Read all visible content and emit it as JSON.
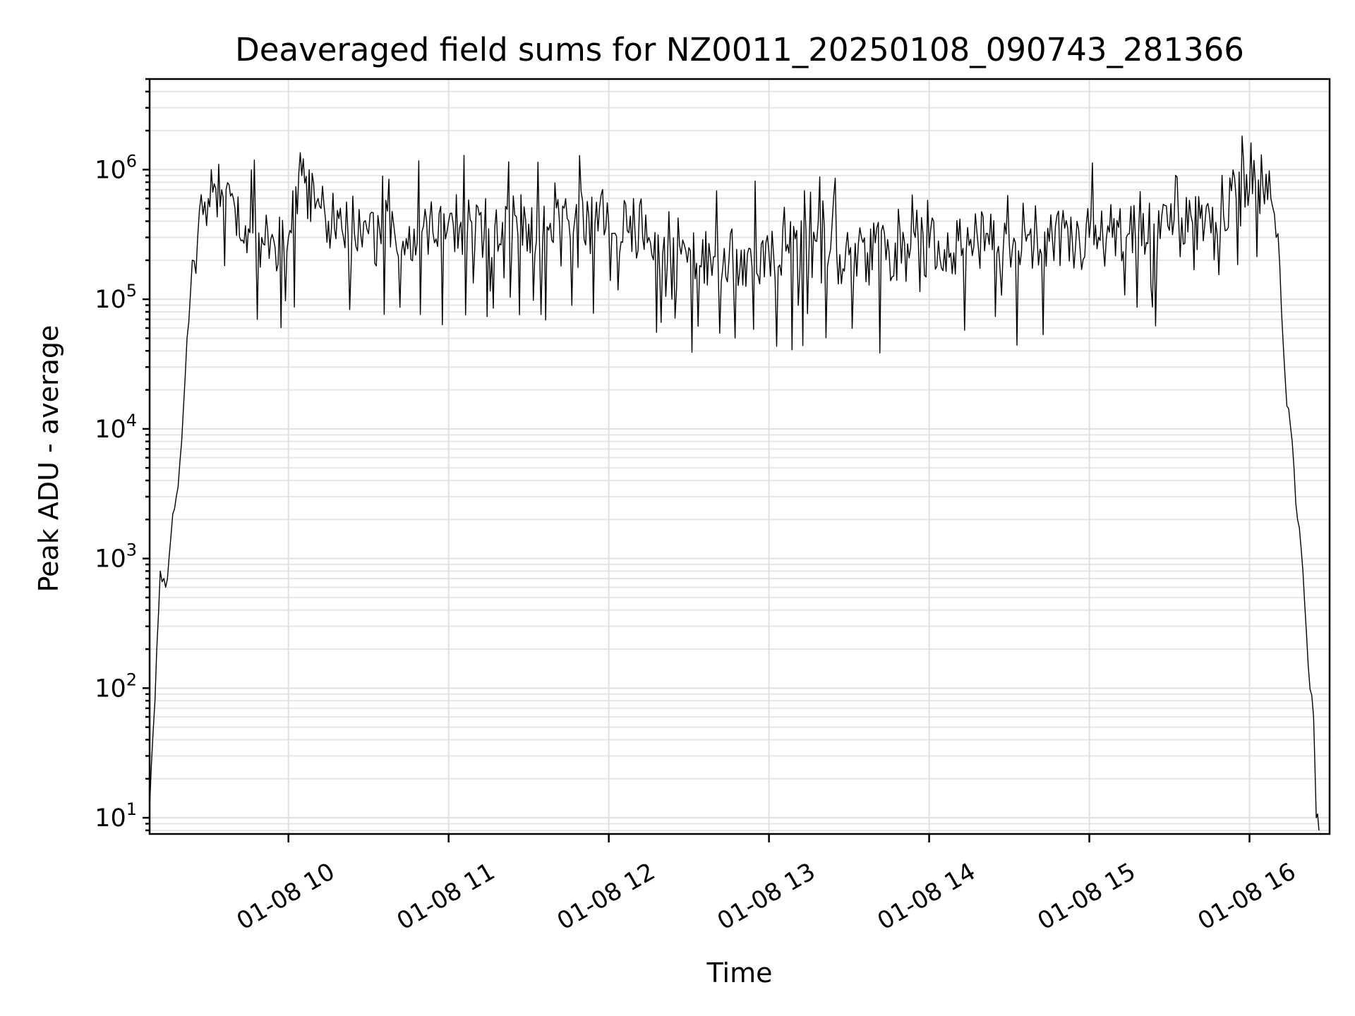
{
  "chart_data": {
    "type": "line",
    "title": "Deaveraged field sums for NZ0011_20250108_090743_281366",
    "xlabel": "Time",
    "ylabel": "Peak ADU - average",
    "yscale": "log",
    "ylim": [
      7.5,
      5000000
    ],
    "xlim": [
      "2025-01-08 09:08",
      "2025-01-08 16:30"
    ],
    "xticks": [
      {
        "time": "2025-01-08 10:00",
        "label": "01-08 10"
      },
      {
        "time": "2025-01-08 11:00",
        "label": "01-08 11"
      },
      {
        "time": "2025-01-08 12:00",
        "label": "01-08 12"
      },
      {
        "time": "2025-01-08 13:00",
        "label": "01-08 13"
      },
      {
        "time": "2025-01-08 14:00",
        "label": "01-08 14"
      },
      {
        "time": "2025-01-08 15:00",
        "label": "01-08 15"
      },
      {
        "time": "2025-01-08 16:00",
        "label": "01-08 16"
      }
    ],
    "yticks": [
      {
        "value": 10,
        "base": "10",
        "exp": "1"
      },
      {
        "value": 100,
        "base": "10",
        "exp": "2"
      },
      {
        "value": 1000,
        "base": "10",
        "exp": "3"
      },
      {
        "value": 10000,
        "base": "10",
        "exp": "4"
      },
      {
        "value": 100000,
        "base": "10",
        "exp": "5"
      },
      {
        "value": 1000000,
        "base": "10",
        "exp": "6"
      }
    ],
    "grid": true,
    "line_color": "#000000",
    "series": [
      {
        "x": [
          "2025-01-08 09:08",
          "2025-01-08 09:10",
          "2025-01-08 09:12",
          "2025-01-08 09:14",
          "2025-01-08 09:16",
          "2025-01-08 09:18",
          "2025-01-08 09:20",
          "2025-01-08 09:22",
          "2025-01-08 09:24",
          "2025-01-08 09:26",
          "2025-01-08 09:28",
          "2025-01-08 09:30",
          "2025-01-08 09:35",
          "2025-01-08 09:40",
          "2025-01-08 09:45",
          "2025-01-08 09:50",
          "2025-01-08 09:55",
          "2025-01-08 10:00",
          "2025-01-08 10:05",
          "2025-01-08 10:10",
          "2025-01-08 10:15",
          "2025-01-08 10:20",
          "2025-01-08 10:30",
          "2025-01-08 10:40",
          "2025-01-08 10:50",
          "2025-01-08 11:00",
          "2025-01-08 11:15",
          "2025-01-08 11:30",
          "2025-01-08 11:45",
          "2025-01-08 12:00",
          "2025-01-08 12:15",
          "2025-01-08 12:30",
          "2025-01-08 12:45",
          "2025-01-08 13:00",
          "2025-01-08 13:15",
          "2025-01-08 13:30",
          "2025-01-08 13:45",
          "2025-01-08 14:00",
          "2025-01-08 14:15",
          "2025-01-08 14:30",
          "2025-01-08 14:45",
          "2025-01-08 15:00",
          "2025-01-08 15:15",
          "2025-01-08 15:30",
          "2025-01-08 15:45",
          "2025-01-08 15:55",
          "2025-01-08 16:00",
          "2025-01-08 16:05",
          "2025-01-08 16:08",
          "2025-01-08 16:10",
          "2025-01-08 16:12",
          "2025-01-08 16:14",
          "2025-01-08 16:16",
          "2025-01-08 16:18",
          "2025-01-08 16:20",
          "2025-01-08 16:22",
          "2025-01-08 16:24",
          "2025-01-08 16:25",
          "2025-01-08 16:26"
        ],
        "y": [
          12,
          80,
          800,
          600,
          1500,
          3000,
          8000,
          50000,
          200000,
          300000,
          450000,
          600000,
          700000,
          500000,
          350000,
          300000,
          250000,
          300000,
          900000,
          500000,
          400000,
          350000,
          320000,
          300000,
          330000,
          400000,
          350000,
          380000,
          400000,
          380000,
          300000,
          250000,
          200000,
          230000,
          240000,
          220000,
          230000,
          250000,
          260000,
          270000,
          280000,
          300000,
          320000,
          340000,
          450000,
          600000,
          700000,
          750000,
          600000,
          300000,
          80000,
          15000,
          8000,
          2000,
          800,
          150,
          60,
          10,
          8
        ]
      }
    ]
  }
}
